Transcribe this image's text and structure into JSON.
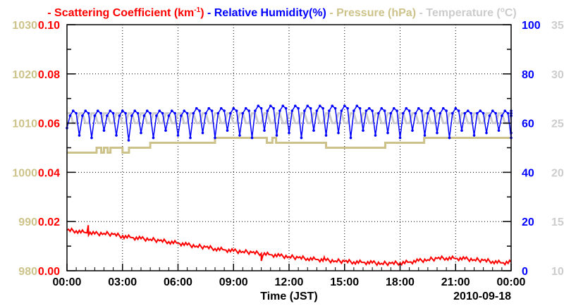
{
  "chart_data": {
    "type": "line",
    "legend": [
      {
        "name": "Scattering Coefficient (km",
        "sup": "-1",
        "tail": ")",
        "color": "#ff0000"
      },
      {
        "name": "Relative Humidity(%)",
        "sup": "",
        "tail": "",
        "color": "#0000ff"
      },
      {
        "name": "Pressure (hPa)",
        "sup": "",
        "tail": "",
        "color": "#cdc38a"
      },
      {
        "name": "Temperature (",
        "sup": "o",
        "tail": "C)",
        "color": "#cccccc"
      }
    ],
    "legend_placement": "top",
    "xlabel": "Time (JST)",
    "date_label": "2010-09-18",
    "x_ticks": [
      "00:00",
      "03:00",
      "06:00",
      "09:00",
      "12:00",
      "15:00",
      "18:00",
      "21:00",
      "00:00"
    ],
    "xlim_hours": [
      0,
      24
    ],
    "grid": true,
    "axes": {
      "pressure": {
        "side": "left-outer",
        "ylim": [
          980,
          1030
        ],
        "ticks": [
          "980",
          "990",
          "1000",
          "1010",
          "1020",
          "1030"
        ],
        "color": "#cdc38a"
      },
      "scattering": {
        "side": "left",
        "ylim": [
          0,
          0.1
        ],
        "ticks": [
          "0.00",
          "0.02",
          "0.04",
          "0.06",
          "0.08",
          "0.10"
        ],
        "color": "#ff0000"
      },
      "humidity": {
        "side": "right",
        "ylim": [
          0,
          100
        ],
        "ticks": [
          "0",
          "20",
          "40",
          "60",
          "80",
          "100"
        ],
        "color": "#0000ff"
      },
      "temperature": {
        "side": "right-outer",
        "ylim": [
          10,
          35
        ],
        "ticks": [
          "10",
          "15",
          "20",
          "25",
          "30",
          "35"
        ],
        "color": "#cccccc"
      }
    },
    "series": {
      "scattering": {
        "interval_minutes": 30,
        "values": [
          0.0165,
          0.0162,
          0.0155,
          0.015,
          0.0152,
          0.0148,
          0.014,
          0.0135,
          0.013,
          0.0128,
          0.0122,
          0.0118,
          0.0112,
          0.0105,
          0.01,
          0.0096,
          0.009,
          0.0085,
          0.008,
          0.0078,
          0.0074,
          0.007,
          0.0065,
          0.006,
          0.0057,
          0.0053,
          0.005,
          0.0046,
          0.0042,
          0.004,
          0.0038,
          0.0036,
          0.0034,
          0.0032,
          0.003,
          0.003,
          0.0032,
          0.0035,
          0.004,
          0.0045,
          0.005,
          0.0052,
          0.005,
          0.0048,
          0.0045,
          0.0042,
          0.0038,
          0.0032,
          0.0035
        ]
      },
      "scattering_spikes": [
        [
          1.15,
          0.0185
        ],
        [
          3.0,
          0.0145
        ],
        [
          10.5,
          0.004
        ],
        [
          13.9,
          0.0055
        ]
      ],
      "humidity": {
        "interval_minutes": 10,
        "values": [
          58,
          63,
          65,
          64,
          55,
          63,
          65,
          64,
          54,
          63,
          65,
          64,
          57,
          63,
          65,
          64,
          55,
          63,
          65,
          64,
          53,
          63,
          65,
          64,
          56,
          63,
          65,
          64,
          54,
          63,
          65,
          64,
          57,
          63,
          65,
          64,
          55,
          63,
          65,
          64,
          54,
          64,
          66,
          65,
          56,
          64,
          66,
          65,
          54,
          64,
          66,
          65,
          57,
          64,
          66,
          65,
          55,
          64,
          66,
          65,
          54,
          65,
          67,
          66,
          57,
          65,
          67,
          66,
          55,
          65,
          67,
          66,
          56,
          65,
          67,
          66,
          54,
          65,
          67,
          66,
          57,
          65,
          67,
          66,
          55,
          65,
          67,
          66,
          56,
          65,
          67,
          66,
          54,
          65,
          67,
          66,
          57,
          65,
          66,
          65,
          55,
          64,
          66,
          65,
          56,
          64,
          66,
          65,
          54,
          64,
          66,
          65,
          57,
          64,
          66,
          65,
          55,
          64,
          66,
          65,
          56,
          64,
          66,
          65,
          54,
          64,
          66,
          65,
          57,
          64,
          65,
          64,
          55,
          64,
          65,
          64,
          56,
          63,
          65,
          64,
          57,
          63,
          65,
          64,
          54,
          63,
          65,
          64,
          56,
          63,
          64
        ]
      },
      "pressure_steps": [
        [
          0,
          1004
        ],
        [
          1.6,
          1005
        ],
        [
          1.85,
          1004
        ],
        [
          2.0,
          1005
        ],
        [
          2.2,
          1004
        ],
        [
          2.35,
          1005
        ],
        [
          3.0,
          1004
        ],
        [
          3.35,
          1005
        ],
        [
          4.5,
          1006
        ],
        [
          8.0,
          1007
        ],
        [
          10.8,
          1006
        ],
        [
          11.1,
          1007
        ],
        [
          11.3,
          1006
        ],
        [
          14.0,
          1005
        ],
        [
          17.2,
          1006
        ],
        [
          19.3,
          1007
        ],
        [
          24,
          1007
        ]
      ],
      "temperature": {
        "interval_minutes": 10,
        "pattern": [
          26,
          26,
          25,
          25
        ],
        "note": "oscillates between 25 and 26 with humidity cycle"
      }
    }
  }
}
